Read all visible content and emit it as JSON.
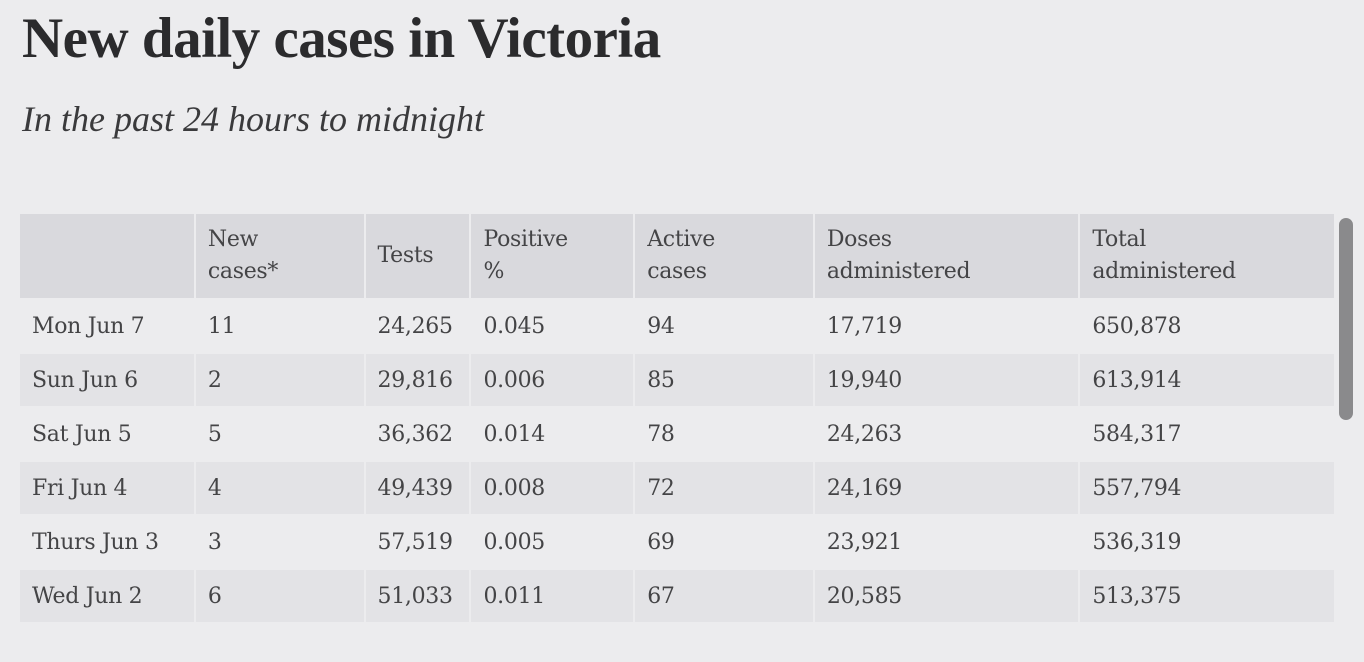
{
  "title": "New daily cases in Victoria",
  "subtitle": "In the past 24 hours to midnight",
  "table": {
    "headers": [
      "",
      "New cases*",
      "Tests",
      "Positive %",
      "Active cases",
      "Doses administered",
      "Total administered"
    ],
    "header_lines": [
      [
        ""
      ],
      [
        "New",
        "cases*"
      ],
      [
        "Tests"
      ],
      [
        "Positive",
        "%"
      ],
      [
        "Active",
        "cases"
      ],
      [
        "Doses",
        "administered"
      ],
      [
        "Total",
        "administered"
      ]
    ],
    "rows": [
      [
        "Mon Jun 7",
        "11",
        "24,265",
        "0.045",
        "94",
        "17,719",
        "650,878"
      ],
      [
        "Sun Jun 6",
        "2",
        "29,816",
        "0.006",
        "85",
        "19,940",
        "613,914"
      ],
      [
        "Sat Jun 5",
        "5",
        "36,362",
        "0.014",
        "78",
        "24,263",
        "584,317"
      ],
      [
        "Fri Jun 4",
        "4",
        "49,439",
        "0.008",
        "72",
        "24,169",
        "557,794"
      ],
      [
        "Thurs Jun 3",
        "3",
        "57,519",
        "0.005",
        "69",
        "23,921",
        "536,319"
      ],
      [
        "Wed Jun 2",
        "6",
        "51,033",
        "0.011",
        "67",
        "20,585",
        "513,375"
      ]
    ]
  },
  "chart_data": {
    "type": "table",
    "title": "New daily cases in Victoria",
    "subtitle": "In the past 24 hours to midnight",
    "columns": [
      "",
      "New cases*",
      "Tests",
      "Positive %",
      "Active cases",
      "Doses administered",
      "Total administered"
    ],
    "rows": [
      {
        "date": "Mon Jun 7",
        "new_cases": 11,
        "tests": 24265,
        "positive_pct": 0.045,
        "active_cases": 94,
        "doses_administered": 17719,
        "total_administered": 650878
      },
      {
        "date": "Sun Jun 6",
        "new_cases": 2,
        "tests": 29816,
        "positive_pct": 0.006,
        "active_cases": 85,
        "doses_administered": 19940,
        "total_administered": 613914
      },
      {
        "date": "Sat Jun 5",
        "new_cases": 5,
        "tests": 36362,
        "positive_pct": 0.014,
        "active_cases": 78,
        "doses_administered": 24263,
        "total_administered": 584317
      },
      {
        "date": "Fri Jun 4",
        "new_cases": 4,
        "tests": 49439,
        "positive_pct": 0.008,
        "active_cases": 72,
        "doses_administered": 24169,
        "total_administered": 557794
      },
      {
        "date": "Thurs Jun 3",
        "new_cases": 3,
        "tests": 57519,
        "positive_pct": 0.005,
        "active_cases": 69,
        "doses_administered": 23921,
        "total_administered": 536319
      },
      {
        "date": "Wed Jun 2",
        "new_cases": 6,
        "tests": 51033,
        "positive_pct": 0.011,
        "active_cases": 67,
        "doses_administered": 20585,
        "total_administered": 513375
      }
    ]
  },
  "colors": {
    "background": "#ececee",
    "header_bg": "#d9d9dd",
    "row_alt_bg": "#e3e3e6",
    "scrollbar": "#8a8a8c",
    "text": "#444446"
  }
}
